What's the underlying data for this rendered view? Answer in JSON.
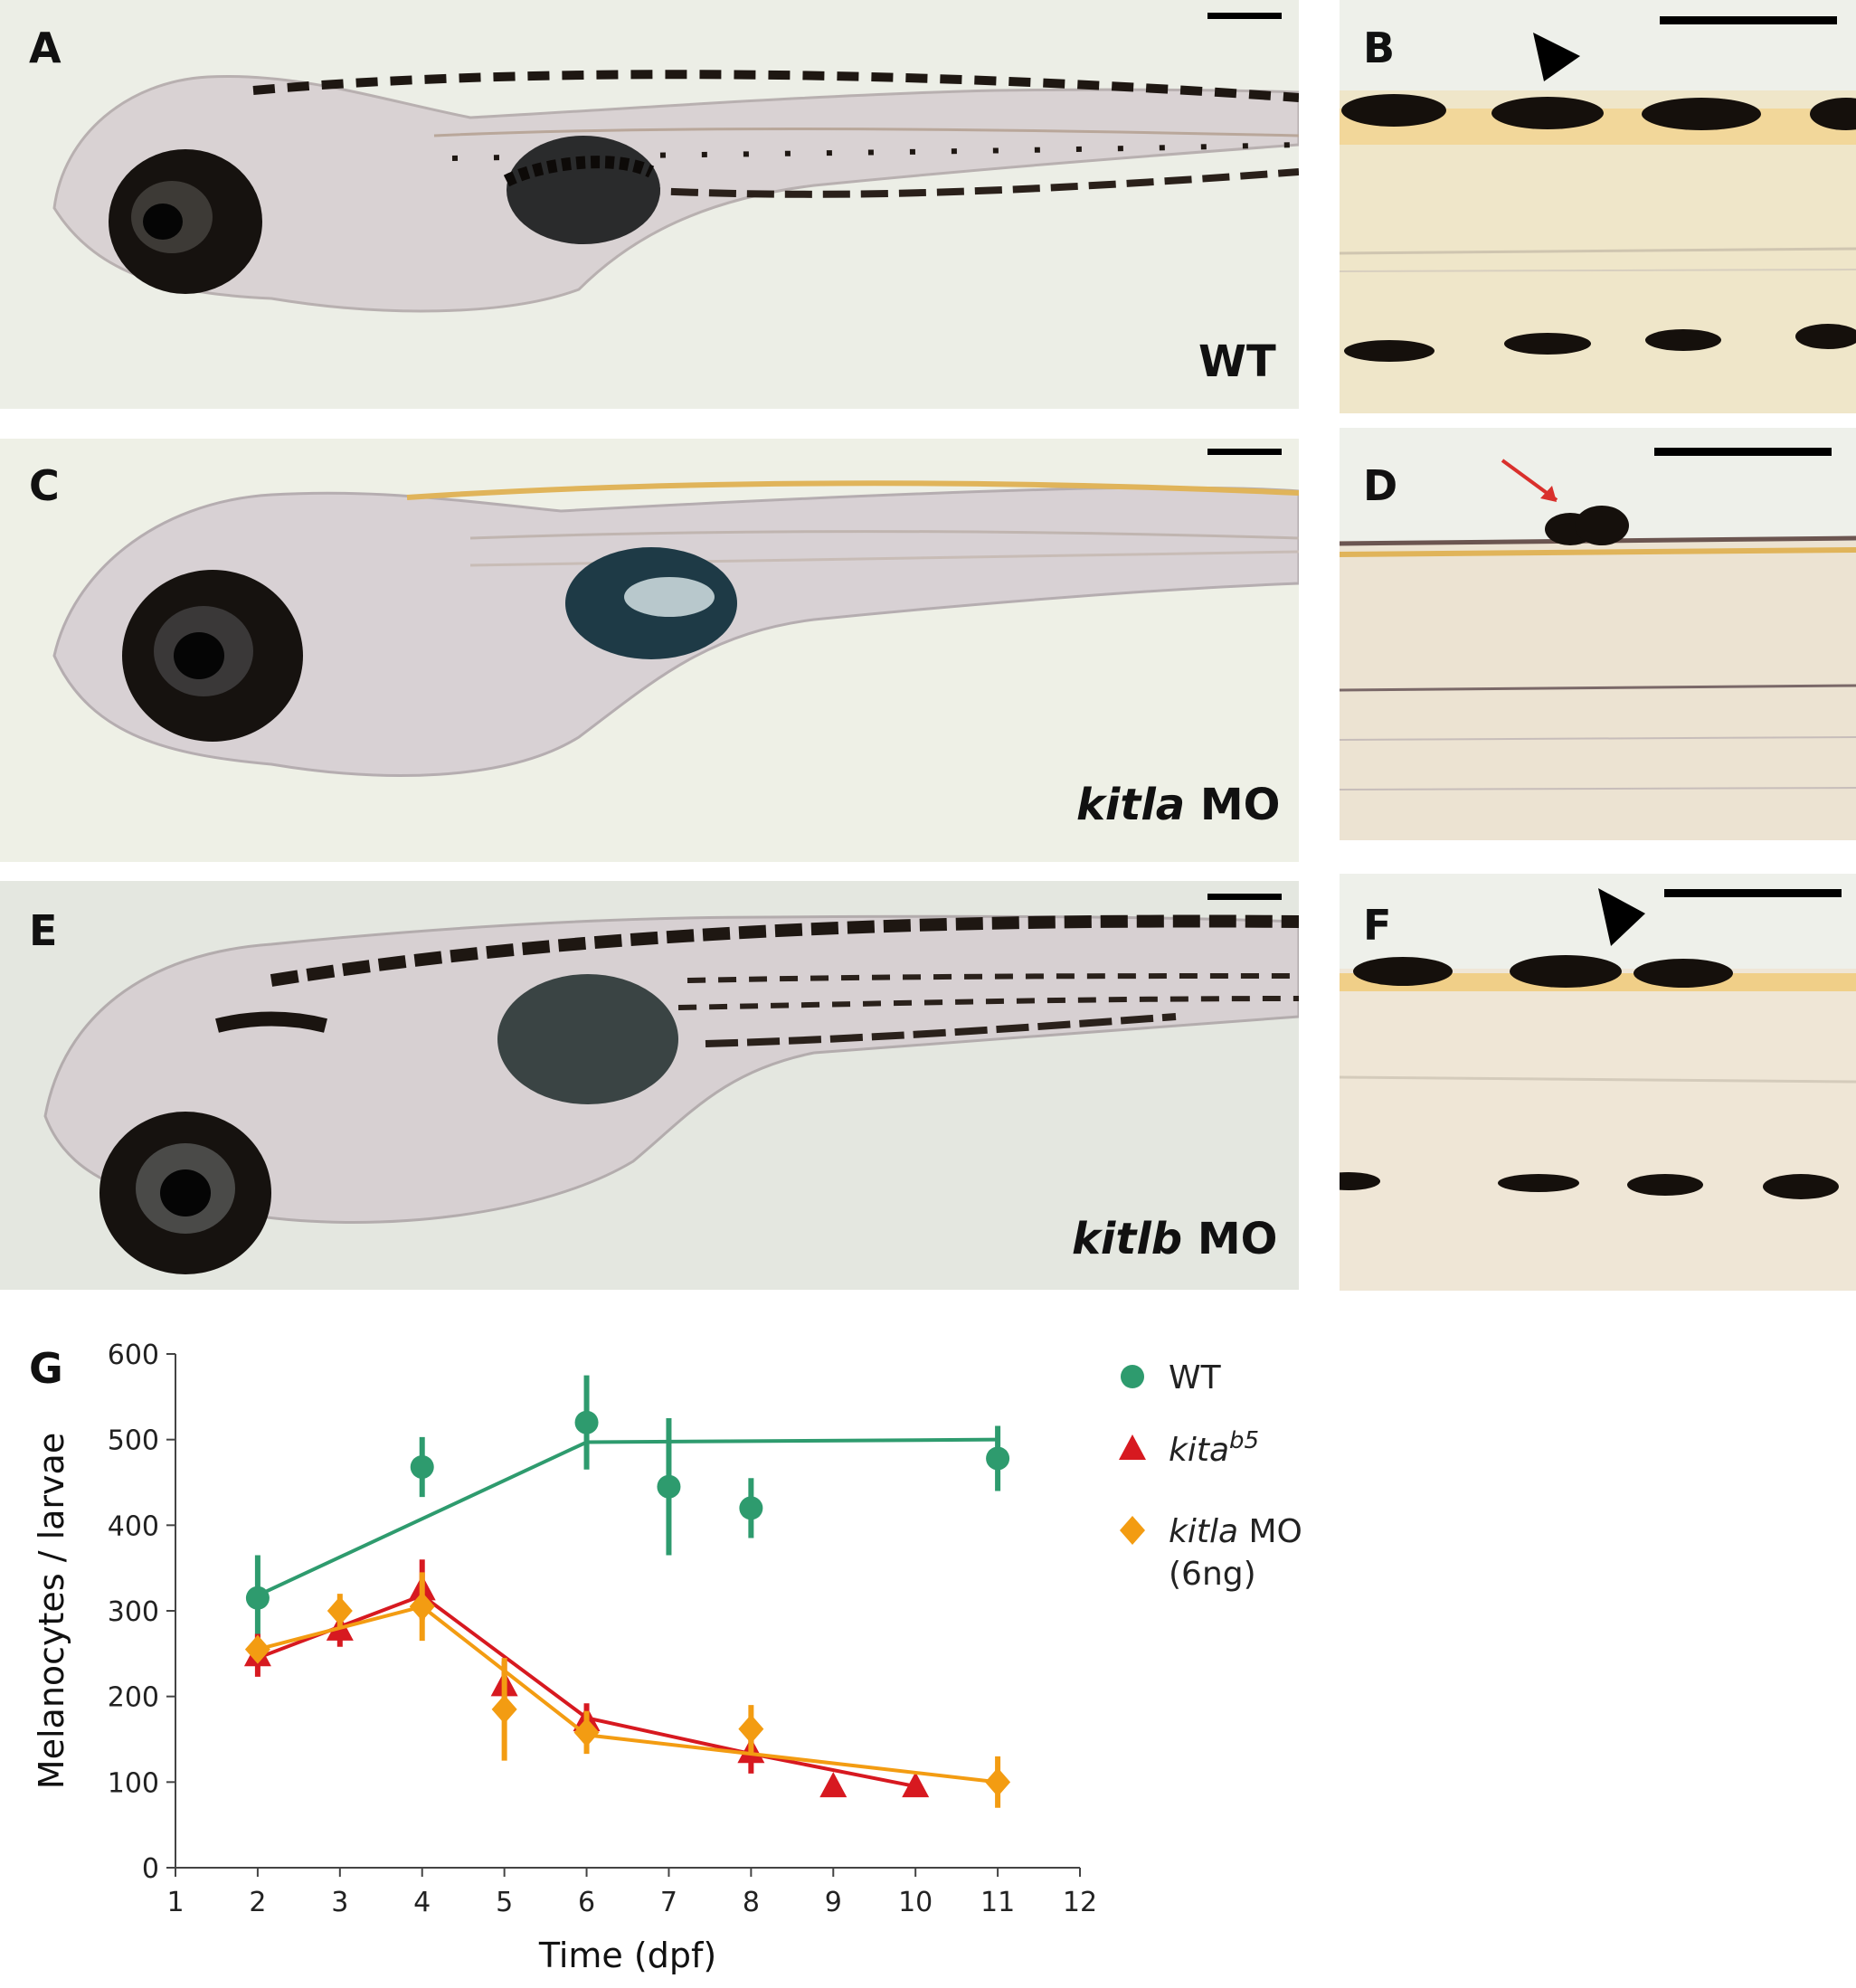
{
  "panels": {
    "A": {
      "letter": "A",
      "condition": "WT"
    },
    "B": {
      "letter": "B"
    },
    "C": {
      "letter": "C",
      "condition_gene": "kitla",
      "condition_suffix": " MO"
    },
    "D": {
      "letter": "D"
    },
    "E": {
      "letter": "E",
      "condition_gene": "kitlb",
      "condition_suffix": " MO"
    },
    "F": {
      "letter": "F"
    },
    "G": {
      "letter": "G"
    }
  },
  "colors": {
    "wt": "#2e9b6e",
    "kita": "#d71920",
    "kitla": "#f39c12",
    "photo_bg": "#e9ede4",
    "body": "#d8cfcf",
    "pigment": "#1a1410",
    "yellow": "#e0b45a"
  },
  "chart_data": {
    "type": "scatter",
    "xlabel": "Time (dpf)",
    "ylabel": "Melanocytes / larvae",
    "xlim": [
      1,
      12
    ],
    "ylim": [
      0,
      600
    ],
    "xticks": [
      1,
      2,
      3,
      4,
      5,
      6,
      7,
      8,
      9,
      10,
      11,
      12
    ],
    "yticks": [
      0,
      100,
      200,
      300,
      400,
      500,
      600
    ],
    "legend_position": "top-right",
    "series": [
      {
        "name": "WT",
        "name_italic": "",
        "superscript": "",
        "name_line2": "",
        "marker": "circle",
        "color": "#2e9b6e",
        "points": [
          {
            "x": 2,
            "y": 315,
            "err": 50
          },
          {
            "x": 4,
            "y": 468,
            "err": 35
          },
          {
            "x": 6,
            "y": 520,
            "err": 55
          },
          {
            "x": 7,
            "y": 445,
            "err": 80
          },
          {
            "x": 8,
            "y": 420,
            "err": 35
          },
          {
            "x": 11,
            "y": 478,
            "err": 38
          }
        ],
        "trend": [
          [
            2,
            318
          ],
          [
            6,
            497
          ],
          [
            11,
            500
          ]
        ]
      },
      {
        "name": "",
        "name_italic": "kita",
        "superscript": "b5",
        "name_line2": "",
        "marker": "triangle",
        "color": "#d71920",
        "points": [
          {
            "x": 2,
            "y": 248,
            "err": 25
          },
          {
            "x": 3,
            "y": 278,
            "err": 20
          },
          {
            "x": 4,
            "y": 325,
            "err": 35
          },
          {
            "x": 5,
            "y": 213,
            "err": 28
          },
          {
            "x": 6,
            "y": 172,
            "err": 20
          },
          {
            "x": 8,
            "y": 135,
            "err": 25
          },
          {
            "x": 9,
            "y": 95,
            "err": 0
          },
          {
            "x": 10,
            "y": 95,
            "err": 0
          }
        ],
        "trend": [
          [
            2,
            245
          ],
          [
            4,
            318
          ],
          [
            6,
            175
          ],
          [
            8,
            133
          ],
          [
            10,
            95
          ]
        ]
      },
      {
        "name": "",
        "name_italic": "kitla",
        "superscript": "",
        "name_suffix": " MO",
        "name_line2": "(6ng)",
        "marker": "diamond",
        "color": "#f39c12",
        "points": [
          {
            "x": 2,
            "y": 255,
            "err": 0
          },
          {
            "x": 3,
            "y": 300,
            "err": 20
          },
          {
            "x": 4,
            "y": 305,
            "err": 40
          },
          {
            "x": 5,
            "y": 185,
            "err": 60
          },
          {
            "x": 6,
            "y": 158,
            "err": 25
          },
          {
            "x": 8,
            "y": 162,
            "err": 28
          },
          {
            "x": 11,
            "y": 100,
            "err": 30
          }
        ],
        "trend": [
          [
            2,
            255
          ],
          [
            4,
            305
          ],
          [
            6,
            155
          ],
          [
            11,
            100
          ]
        ]
      }
    ]
  }
}
